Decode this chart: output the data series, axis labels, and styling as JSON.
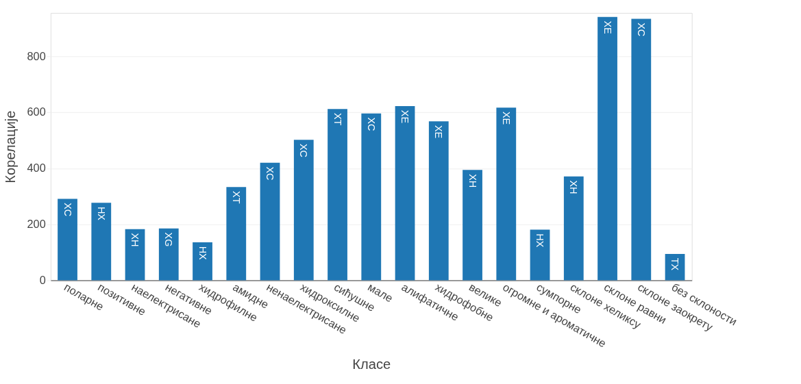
{
  "chart_data": {
    "type": "bar",
    "xlabel": "Класе",
    "ylabel": "Корелације",
    "categories": [
      "поларне",
      "позитивне",
      "наелектрисане",
      "негативне",
      "хидрофилне",
      "амидне",
      "ненаелектрисане",
      "хидроксилне",
      "сићушне",
      "мале",
      "алифатичне",
      "хидрофобне",
      "велике",
      "огромне и ароматичне",
      "сумпорне",
      "склоне хеликсу",
      "склоне равни",
      "склоне заокрету",
      "без склоности"
    ],
    "values": [
      291,
      277,
      183,
      185,
      136,
      333,
      420,
      502,
      612,
      596,
      622,
      568,
      394,
      617,
      181,
      371,
      941,
      934,
      94
    ],
    "value_labels": [
      "XC",
      "HX",
      "XH",
      "XG",
      "HX",
      "XT",
      "XC",
      "XC",
      "XT",
      "XC",
      "XE",
      "XE",
      "XH",
      "XE",
      "HX",
      "XH",
      "XE",
      "XC",
      "TX"
    ],
    "color": "#1f77b4",
    "ylim": [
      0,
      955
    ],
    "yticks": [
      0,
      200,
      400,
      600,
      800
    ],
    "grid": "y"
  }
}
